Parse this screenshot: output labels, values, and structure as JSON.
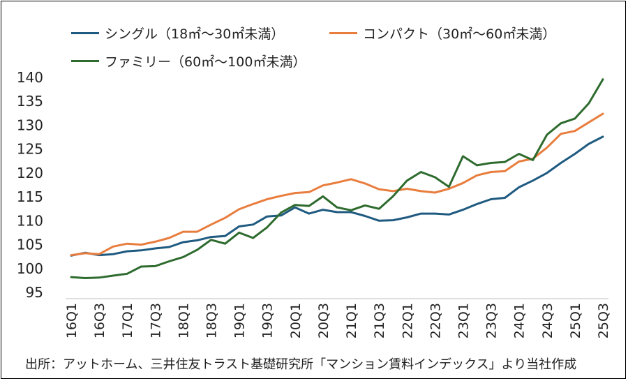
{
  "chart_data": {
    "type": "line",
    "title": "",
    "xlabel": "",
    "ylabel": "",
    "ylim": [
      95,
      140
    ],
    "yticks": [
      95,
      100,
      105,
      110,
      115,
      120,
      125,
      130,
      135,
      140
    ],
    "categories": [
      "16Q1",
      "16Q2",
      "16Q3",
      "16Q4",
      "17Q1",
      "17Q2",
      "17Q3",
      "17Q4",
      "18Q1",
      "18Q2",
      "18Q3",
      "18Q4",
      "19Q1",
      "19Q2",
      "19Q3",
      "19Q4",
      "20Q1",
      "20Q2",
      "20Q3",
      "20Q4",
      "21Q1",
      "21Q2",
      "21Q3",
      "21Q4",
      "22Q1",
      "22Q2",
      "22Q3",
      "22Q4",
      "23Q1",
      "23Q2",
      "23Q3",
      "23Q4",
      "24Q1",
      "24Q2",
      "24Q3",
      "24Q4",
      "25Q1",
      "25Q2",
      "25Q3"
    ],
    "tick_labels": [
      "16Q1",
      "16Q3",
      "17Q1",
      "17Q3",
      "18Q1",
      "18Q3",
      "19Q1",
      "19Q3",
      "20Q1",
      "20Q3",
      "21Q1",
      "21Q3",
      "22Q1",
      "22Q3",
      "23Q1",
      "23Q3",
      "24Q1",
      "24Q3",
      "25Q1",
      "25Q3"
    ],
    "series": [
      {
        "name": "シングル（18㎡～30㎡未満）",
        "color": "#1f5a80",
        "values": [
          102.7,
          103.3,
          102.8,
          103.0,
          103.6,
          103.8,
          104.2,
          104.5,
          105.5,
          105.9,
          106.6,
          106.8,
          108.8,
          109.2,
          110.9,
          111.1,
          112.8,
          111.5,
          112.3,
          111.8,
          111.8,
          111.0,
          110.0,
          110.1,
          110.7,
          111.5,
          111.5,
          111.3,
          112.3,
          113.5,
          114.5,
          114.8,
          117.0,
          118.4,
          120.0,
          122.1,
          124.0,
          126.1,
          127.6
        ]
      },
      {
        "name": "コンパクト（30㎡～60㎡未満）",
        "color": "#e87d3e",
        "values": [
          102.8,
          103.2,
          103.0,
          104.6,
          105.2,
          105.0,
          105.6,
          106.4,
          107.7,
          107.7,
          109.2,
          110.6,
          112.4,
          113.5,
          114.5,
          115.2,
          115.8,
          116.0,
          117.4,
          118.0,
          118.7,
          117.8,
          116.6,
          116.2,
          116.7,
          116.2,
          115.9,
          116.7,
          117.9,
          119.5,
          120.2,
          120.4,
          122.4,
          123.0,
          125.3,
          128.2,
          128.8,
          130.6,
          132.4
        ]
      },
      {
        "name": "ファミリー（60㎡～100㎡未満）",
        "color": "#2e6b2e",
        "values": [
          98.2,
          98.0,
          98.1,
          98.5,
          98.9,
          100.4,
          100.5,
          101.5,
          102.4,
          103.9,
          106.0,
          105.2,
          107.5,
          106.4,
          108.6,
          111.7,
          113.3,
          113.1,
          115.1,
          112.8,
          112.2,
          113.2,
          112.5,
          115.1,
          118.4,
          120.2,
          119.1,
          117.1,
          123.5,
          121.6,
          122.1,
          122.3,
          124.0,
          122.7,
          128.0,
          130.4,
          131.4,
          134.6,
          139.6
        ]
      }
    ],
    "legend_position": "top"
  },
  "source": "出所：アットホーム、三井住友トラスト基礎研究所「マンション賃料インデックス」より当社作成"
}
